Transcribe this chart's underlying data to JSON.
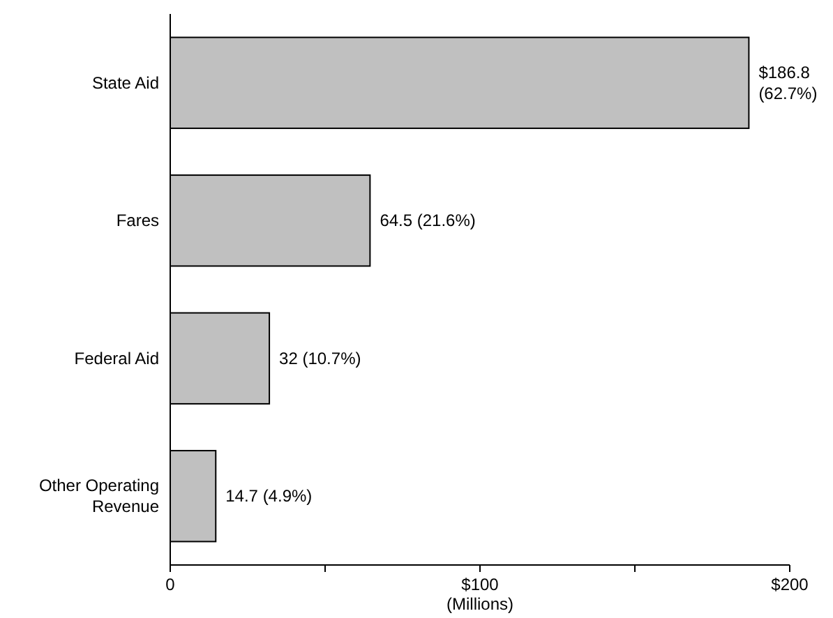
{
  "chart_data": {
    "type": "bar",
    "orientation": "horizontal",
    "xlabel": "(Millions)",
    "categories": [
      "State Aid",
      "Fares",
      "Federal Aid",
      "Other Operating Revenue"
    ],
    "values": [
      186.8,
      64.5,
      32,
      14.7
    ],
    "value_labels": [
      "$186.8 (62.7%)",
      "64.5 (21.6%)",
      "32 (10.7%)",
      "14.7 (4.9%)"
    ],
    "color": "#c0c0c0",
    "xlim": [
      0,
      200
    ],
    "xticks": [
      0,
      {
        "value": 50,
        "label": null
      },
      {
        "value": 100,
        "label": "$100"
      },
      {
        "value": 150,
        "label": null
      },
      {
        "value": 200,
        "label": "$200"
      }
    ],
    "grid": false
  }
}
